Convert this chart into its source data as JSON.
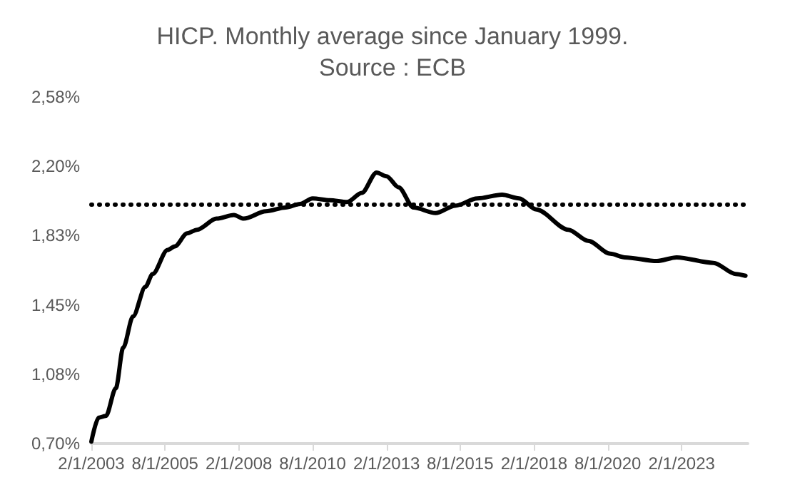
{
  "chart_data": {
    "type": "line",
    "title": "HICP. Monthly average since January 1999.",
    "subtitle": "Source : ECB",
    "x": [
      "2003-02",
      "2003-05",
      "2003-08",
      "2003-12",
      "2004-03",
      "2004-07",
      "2004-12",
      "2005-03",
      "2005-09",
      "2005-12",
      "2006-05",
      "2006-09",
      "2007-05",
      "2007-12",
      "2008-04",
      "2009-01",
      "2009-09",
      "2010-03",
      "2010-08",
      "2011-03",
      "2011-10",
      "2012-04",
      "2012-10",
      "2013-02",
      "2013-07",
      "2014-01",
      "2014-10",
      "2015-06",
      "2016-03",
      "2017-01",
      "2017-08",
      "2018-03",
      "2019-04",
      "2019-12",
      "2020-09",
      "2021-03",
      "2022-04",
      "2022-12",
      "2024-03",
      "2024-12",
      "2025-04"
    ],
    "series": [
      {
        "color": "#000000",
        "values": [
          0.71,
          0.84,
          0.85,
          1.0,
          1.22,
          1.39,
          1.55,
          1.62,
          1.75,
          1.77,
          1.84,
          1.86,
          1.92,
          1.94,
          1.92,
          1.96,
          1.98,
          2.0,
          2.03,
          2.02,
          2.01,
          2.06,
          2.17,
          2.15,
          2.09,
          1.98,
          1.95,
          1.99,
          2.03,
          2.05,
          2.03,
          1.97,
          1.86,
          1.8,
          1.73,
          1.71,
          1.69,
          1.71,
          1.68,
          1.62,
          1.61
        ]
      }
    ],
    "xlim": [
      "2003-02",
      "2025-05"
    ],
    "xticks": [
      {
        "value": "2003-02-01",
        "label": "2/1/2003"
      },
      {
        "value": "2005-08-01",
        "label": "8/1/2005"
      },
      {
        "value": "2008-02-01",
        "label": "2/1/2008"
      },
      {
        "value": "2010-08-01",
        "label": "8/1/2010"
      },
      {
        "value": "2013-02-01",
        "label": "2/1/2013"
      },
      {
        "value": "2015-08-01",
        "label": "8/1/2015"
      },
      {
        "value": "2018-02-01",
        "label": "2/1/2018"
      },
      {
        "value": "2020-08-01",
        "label": "8/1/2020"
      },
      {
        "value": "2023-02-01",
        "label": "2/1/2023"
      }
    ],
    "ylim": [
      0.7,
      2.58
    ],
    "yticks": [
      {
        "value": 0.7,
        "label": "0,70%"
      },
      {
        "value": 1.076,
        "label": "1,08%"
      },
      {
        "value": 1.452,
        "label": "1,45%"
      },
      {
        "value": 1.828,
        "label": "1,83%"
      },
      {
        "value": 2.204,
        "label": "2,20%"
      },
      {
        "value": 2.58,
        "label": "2,58%"
      }
    ],
    "ref_lines": [
      {
        "axis": "y",
        "value": 2.0,
        "color": "#000000",
        "line_style": "dotted"
      }
    ],
    "marker": "none",
    "line_style": "solid",
    "grid": false
  }
}
